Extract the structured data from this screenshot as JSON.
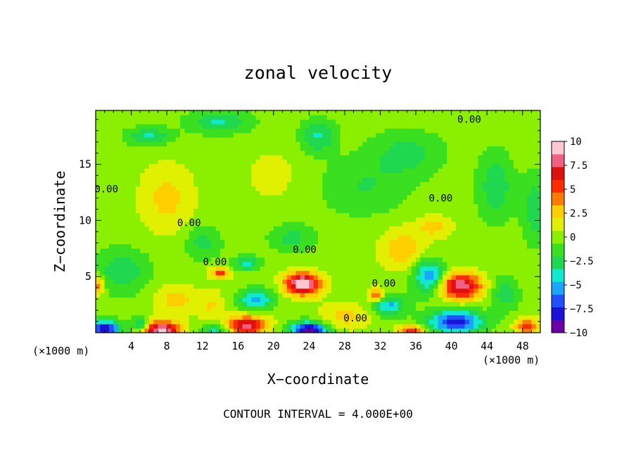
{
  "chart_data": {
    "type": "heatmap",
    "title": "zonal velocity",
    "xlabel": "X−coordinate",
    "ylabel": "Z−coordinate",
    "x_unit_left": "(×1000 m)",
    "x_unit_right": "(×1000 m)",
    "xlim": [
      0,
      50
    ],
    "ylim": [
      0,
      19.8
    ],
    "xticks": [
      4,
      8,
      12,
      16,
      20,
      24,
      28,
      32,
      36,
      40,
      44,
      48
    ],
    "xtick_labels": [
      "4",
      "8",
      "12",
      "16",
      "20",
      "24",
      "28",
      "32",
      "36",
      "40",
      "44",
      "48"
    ],
    "yticks": [
      5,
      10,
      15
    ],
    "ytick_labels": [
      "5",
      "10",
      "15"
    ],
    "footer": "CONTOUR INTERVAL = 4.000E+00",
    "contour_interval": 4,
    "contour_label": "0.00",
    "contour_label_positions": [
      [
        42,
        18.7
      ],
      [
        10.5,
        9.5
      ],
      [
        23.5,
        7.1
      ],
      [
        13.4,
        6.0
      ],
      [
        38.8,
        11.7
      ],
      [
        29.2,
        1.0
      ],
      [
        32.4,
        4.1
      ],
      [
        1.2,
        12.5
      ]
    ],
    "colorbar": {
      "vmin": -10,
      "vmax": 10,
      "tick_values": [
        10,
        7.5,
        5,
        2.5,
        0,
        -2.5,
        -5,
        -7.5,
        -10
      ],
      "tick_labels": [
        "10",
        "7.5",
        "5",
        "2.5",
        "0",
        "−2.5",
        "−5",
        "−7.5",
        "−10"
      ],
      "colors": [
        "#6a00a8",
        "#1a12d8",
        "#2050ff",
        "#1aa6ff",
        "#10e8d0",
        "#20d850",
        "#3ae020",
        "#8af000",
        "#e0f000",
        "#ffcf00",
        "#ff7a00",
        "#ff2a00",
        "#e01010",
        "#f06080",
        "#ffc8d0"
      ]
    },
    "features": [
      {
        "x": 1.0,
        "z": 0.4,
        "amp": -9,
        "sx": 1.8,
        "sz": 0.7
      },
      {
        "x": 7.5,
        "z": 0.3,
        "amp": 9.5,
        "sx": 2.0,
        "sz": 0.8
      },
      {
        "x": 17.0,
        "z": 0.7,
        "amp": 8,
        "sx": 2.2,
        "sz": 0.8
      },
      {
        "x": 24.0,
        "z": 0.2,
        "amp": -10,
        "sx": 2.0,
        "sz": 0.8
      },
      {
        "x": 23.3,
        "z": 4.4,
        "amp": 10,
        "sx": 2.0,
        "sz": 1.0
      },
      {
        "x": 41.0,
        "z": 4.2,
        "amp": 8.5,
        "sx": 2.4,
        "sz": 1.2
      },
      {
        "x": 40.5,
        "z": 1.0,
        "amp": -8,
        "sx": 3.0,
        "sz": 1.0
      },
      {
        "x": 37.5,
        "z": 5.0,
        "amp": -6,
        "sx": 1.8,
        "sz": 1.5
      },
      {
        "x": 18.0,
        "z": 3.0,
        "amp": -5,
        "sx": 2.0,
        "sz": 0.9
      },
      {
        "x": 17.0,
        "z": 6.2,
        "amp": -4,
        "sx": 1.5,
        "sz": 0.6
      },
      {
        "x": 14.0,
        "z": 5.4,
        "amp": 5,
        "sx": 1.2,
        "sz": 0.5
      },
      {
        "x": 33.0,
        "z": 2.4,
        "amp": -5,
        "sx": 1.8,
        "sz": 0.9
      },
      {
        "x": 31.5,
        "z": 3.4,
        "amp": 5,
        "sx": 0.8,
        "sz": 0.6
      },
      {
        "x": 0.2,
        "z": 4.2,
        "amp": 5,
        "sx": 0.7,
        "sz": 0.8
      },
      {
        "x": 48.5,
        "z": 0.6,
        "amp": 6,
        "sx": 1.3,
        "sz": 0.7
      },
      {
        "x": 35.5,
        "z": 0.2,
        "amp": 6,
        "sx": 1.5,
        "sz": 0.5
      },
      {
        "x": 28.0,
        "z": 1.5,
        "amp": 2.5,
        "sx": 3.0,
        "sz": 1.2
      },
      {
        "x": 9.0,
        "z": 3.0,
        "amp": 2.5,
        "sx": 2.5,
        "sz": 1.3
      },
      {
        "x": 13.0,
        "z": 2.5,
        "amp": 2,
        "sx": 1.5,
        "sz": 1.4
      },
      {
        "x": 5.0,
        "z": 0.8,
        "amp": -4,
        "sx": 1.0,
        "sz": 0.6
      },
      {
        "x": 13.5,
        "z": 0.3,
        "amp": -4,
        "sx": 1.5,
        "sz": 0.6
      },
      {
        "x": 3.0,
        "z": 5.5,
        "amp": -3,
        "sx": 3.0,
        "sz": 2.0
      },
      {
        "x": 8.0,
        "z": 12.0,
        "amp": 2.5,
        "sx": 3.0,
        "sz": 3.0
      },
      {
        "x": 6.0,
        "z": 17.5,
        "amp": -3.5,
        "sx": 2.5,
        "sz": 0.8
      },
      {
        "x": 14.0,
        "z": 18.8,
        "amp": -3.5,
        "sx": 3.5,
        "sz": 1.0
      },
      {
        "x": 25.0,
        "z": 17.5,
        "amp": -3.5,
        "sx": 2.0,
        "sz": 1.5
      },
      {
        "x": 35.0,
        "z": 16.0,
        "amp": -2.5,
        "sx": 4.0,
        "sz": 2.0
      },
      {
        "x": 45.0,
        "z": 13.0,
        "amp": -3,
        "sx": 2.0,
        "sz": 3.0
      },
      {
        "x": 49.5,
        "z": 11.0,
        "amp": -3,
        "sx": 1.5,
        "sz": 3.0
      },
      {
        "x": 30.0,
        "z": 13.0,
        "amp": -2,
        "sx": 5.0,
        "sz": 2.5
      },
      {
        "x": 34.5,
        "z": 7.5,
        "amp": 3,
        "sx": 2.5,
        "sz": 1.8
      },
      {
        "x": 38.0,
        "z": 9.5,
        "amp": 2.5,
        "sx": 2.0,
        "sz": 1.0
      },
      {
        "x": 20.0,
        "z": 14.0,
        "amp": 1,
        "sx": 4.0,
        "sz": 3.0
      },
      {
        "x": 46.0,
        "z": 3.5,
        "amp": -3,
        "sx": 1.5,
        "sz": 1.5
      },
      {
        "x": 12.0,
        "z": 8.0,
        "amp": -2.5,
        "sx": 2.0,
        "sz": 1.5
      },
      {
        "x": 22.0,
        "z": 8.5,
        "amp": -2.5,
        "sx": 2.5,
        "sz": 1.2
      }
    ]
  }
}
